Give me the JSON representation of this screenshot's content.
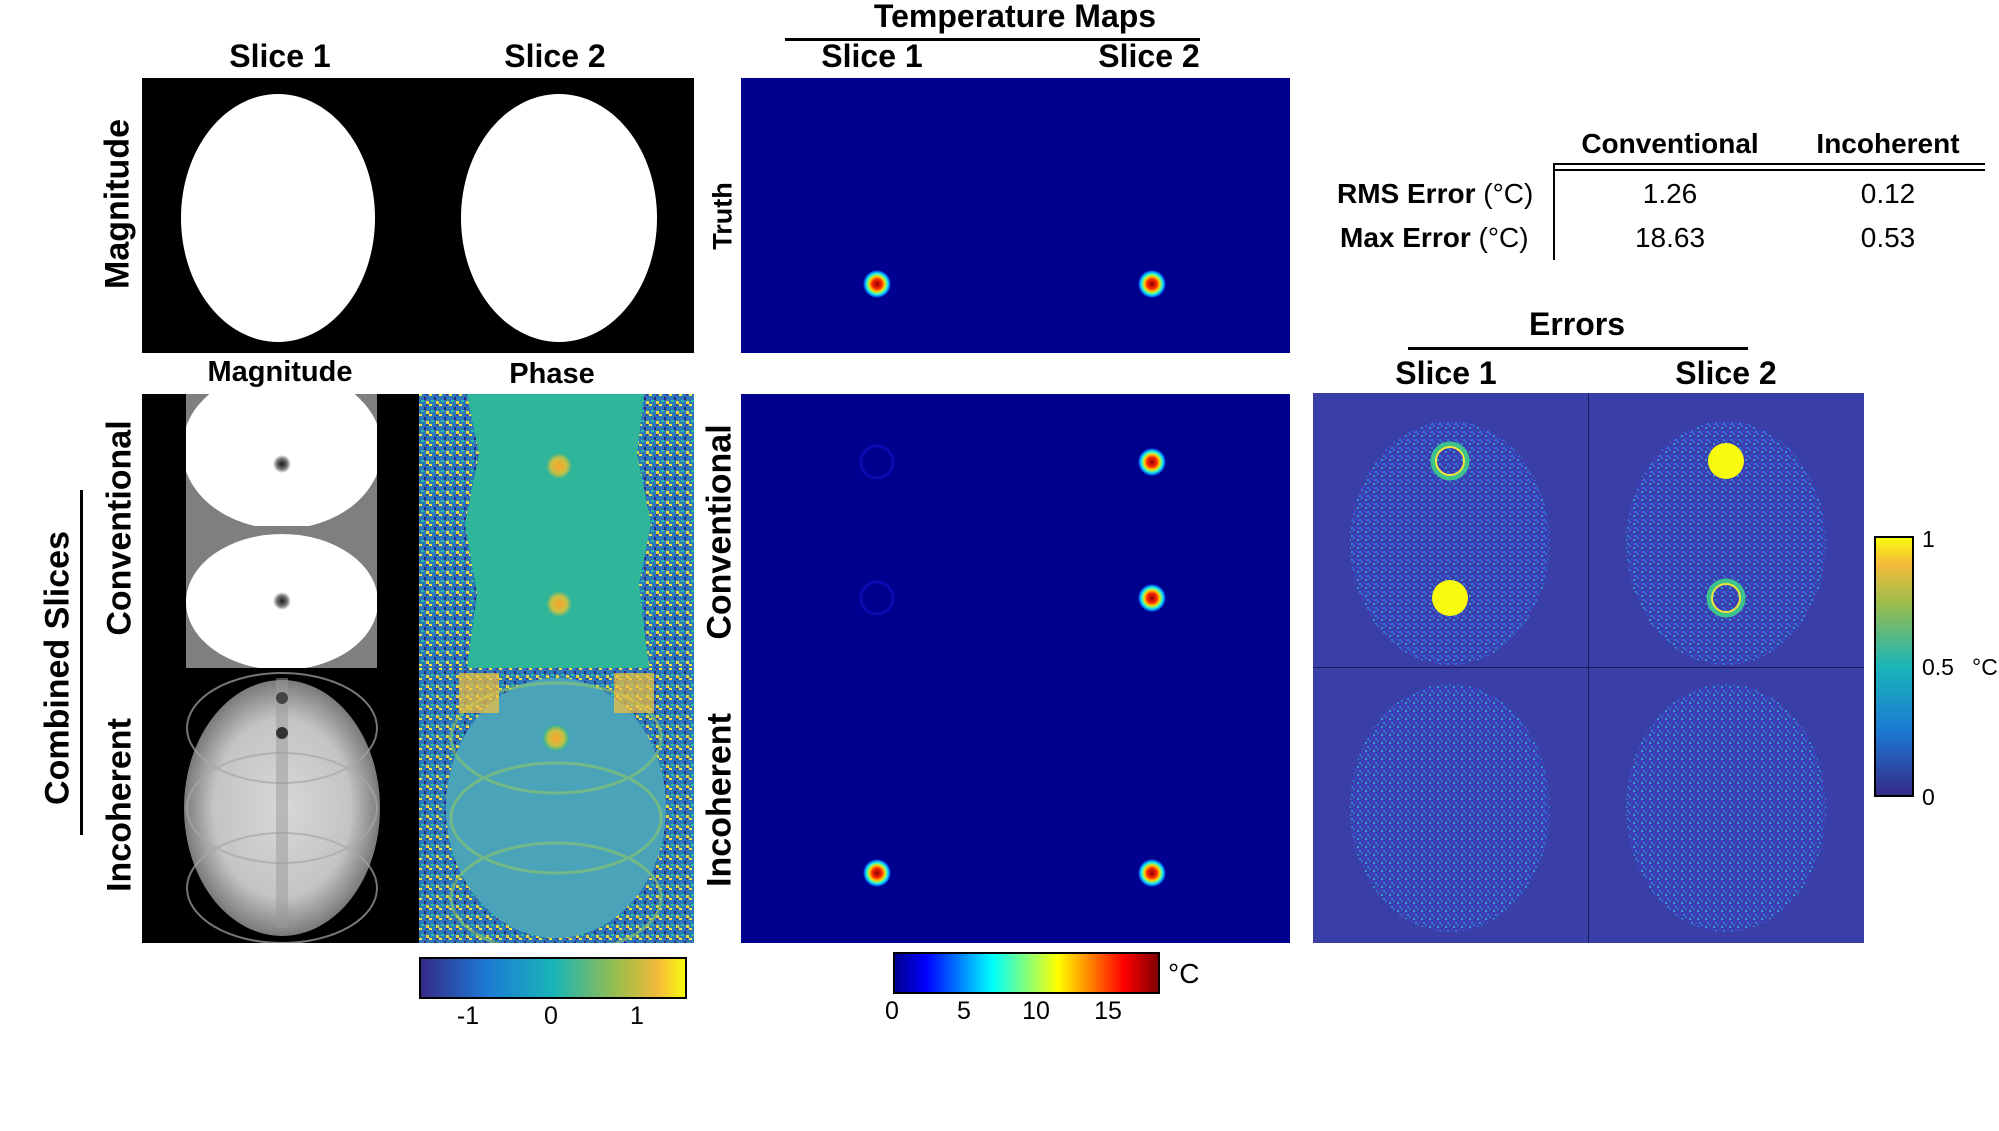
{
  "left_headers": {
    "slice1": "Slice 1",
    "slice2": "Slice 2",
    "magnitude_row": "Magnitude"
  },
  "combined": {
    "group_label": "Combined Slices",
    "col_magnitude": "Magnitude",
    "col_phase": "Phase",
    "row_conventional": "Conventional",
    "row_incoherent": "Incoherent"
  },
  "temperature": {
    "title": "Temperature Maps",
    "slice1": "Slice 1",
    "slice2": "Slice 2",
    "row_truth": "Truth",
    "row_conventional": "Conventional",
    "row_incoherent": "Incoherent"
  },
  "phase_colorbar": {
    "ticks": [
      "-1",
      "0",
      "1"
    ]
  },
  "temp_colorbar": {
    "ticks": [
      "0",
      "5",
      "10",
      "15"
    ],
    "unit": "°C"
  },
  "error_table": {
    "col_conventional": "Conventional",
    "col_incoherent": "Incoherent",
    "rows": [
      {
        "label_bold": "RMS Error",
        "label_unit": " (°C)",
        "conventional": "1.26",
        "incoherent": "0.12"
      },
      {
        "label_bold": "Max Error",
        "label_unit": " (°C)",
        "conventional": "18.63",
        "incoherent": "0.53"
      }
    ]
  },
  "errors": {
    "title": "Errors",
    "slice1": "Slice 1",
    "slice2": "Slice 2",
    "colorbar_ticks": [
      "1",
      "0.5",
      "0"
    ],
    "colorbar_unit": "°C"
  }
}
